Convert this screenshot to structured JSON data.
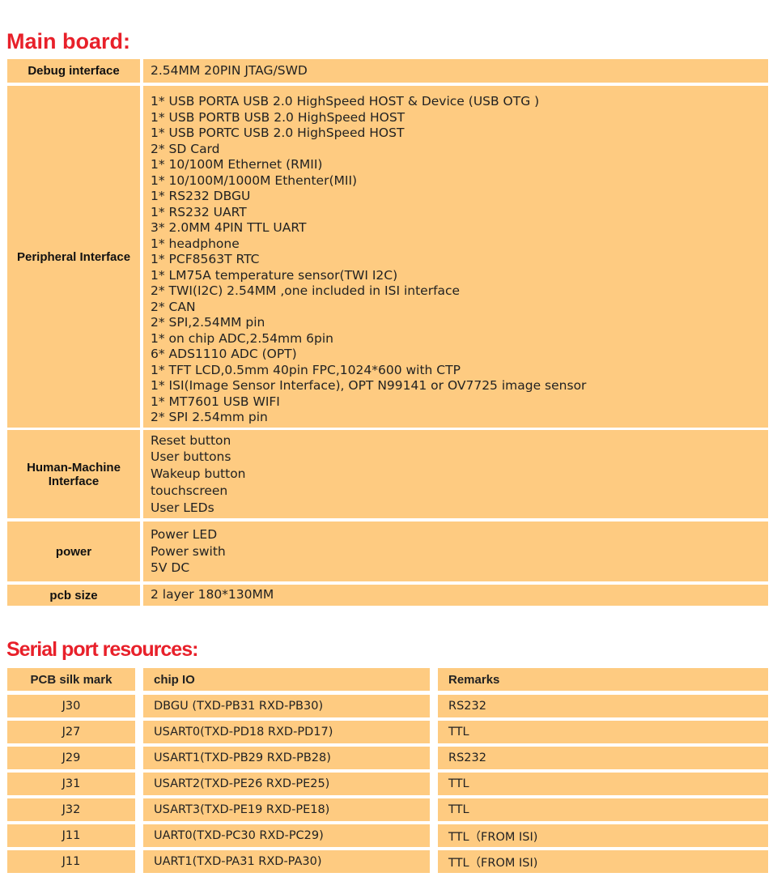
{
  "main_board": {
    "title": "Main board:",
    "rows": [
      {
        "label": "Debug interface",
        "values": [
          "2.54MM 20PIN JTAG/SWD"
        ]
      },
      {
        "label": "Peripheral Interface",
        "values": [
          "1* USB PORTA USB 2.0 HighSpeed HOST & Device (USB OTG )",
          "1* USB PORTB USB 2.0 HighSpeed HOST",
          "1* USB PORTC USB 2.0 HighSpeed HOST",
          "2* SD Card",
          "1* 10/100M Ethernet (RMII)",
          "1* 10/100M/1000M Ethenter(MII)",
          "1* RS232 DBGU",
          "1* RS232 UART",
          "3* 2.0MM  4PIN TTL UART",
          "1* headphone",
          "1* PCF8563T RTC",
          "1* LM75A temperature sensor(TWI I2C)",
          "2* TWI(I2C) 2.54MM ,one included in ISI interface",
          "2* CAN",
          "2* SPI,2.54MM pin",
          "1* on chip ADC,2.54mm 6pin",
          "6* ADS1110 ADC (OPT)",
          "1* TFT LCD,0.5mm 40pin FPC,1024*600 with CTP",
          "1* ISI(Image Sensor Interface), OPT N99141 or OV7725 image sensor",
          "1* MT7601 USB WIFI",
          "2* SPI 2.54mm pin"
        ]
      },
      {
        "label": "Human-Machine Interface",
        "values": [
          "Reset button",
          "User buttons",
          "Wakeup button",
          "touchscreen",
          "User LEDs"
        ]
      },
      {
        "label": "power",
        "values": [
          "Power LED",
          "Power swith",
          "5V DC"
        ]
      },
      {
        "label": "pcb size",
        "values": [
          "2 layer 180*130MM"
        ]
      }
    ]
  },
  "serial": {
    "title": "Serial port resources:",
    "headers": [
      "PCB silk mark",
      "chip IO",
      "Remarks"
    ],
    "rows": [
      [
        "J30",
        "DBGU (TXD-PB31  RXD-PB30)",
        "RS232"
      ],
      [
        "J27",
        "USART0(TXD-PD18  RXD-PD17)",
        "TTL"
      ],
      [
        "J29",
        "USART1(TXD-PB29  RXD-PB28)",
        "RS232"
      ],
      [
        "J31",
        "USART2(TXD-PE26  RXD-PE25)",
        "TTL"
      ],
      [
        "J32",
        "USART3(TXD-PE19  RXD-PE18)",
        "TTL"
      ],
      [
        "J11",
        "UART0(TXD-PC30  RXD-PC29)",
        "TTL（FROM ISI)"
      ],
      [
        "J11",
        "UART1(TXD-PA31  RXD-PA30)",
        "TTL（FROM ISI)"
      ]
    ]
  },
  "colors": {
    "title": "#e8202a",
    "cell": "#fecb81"
  }
}
